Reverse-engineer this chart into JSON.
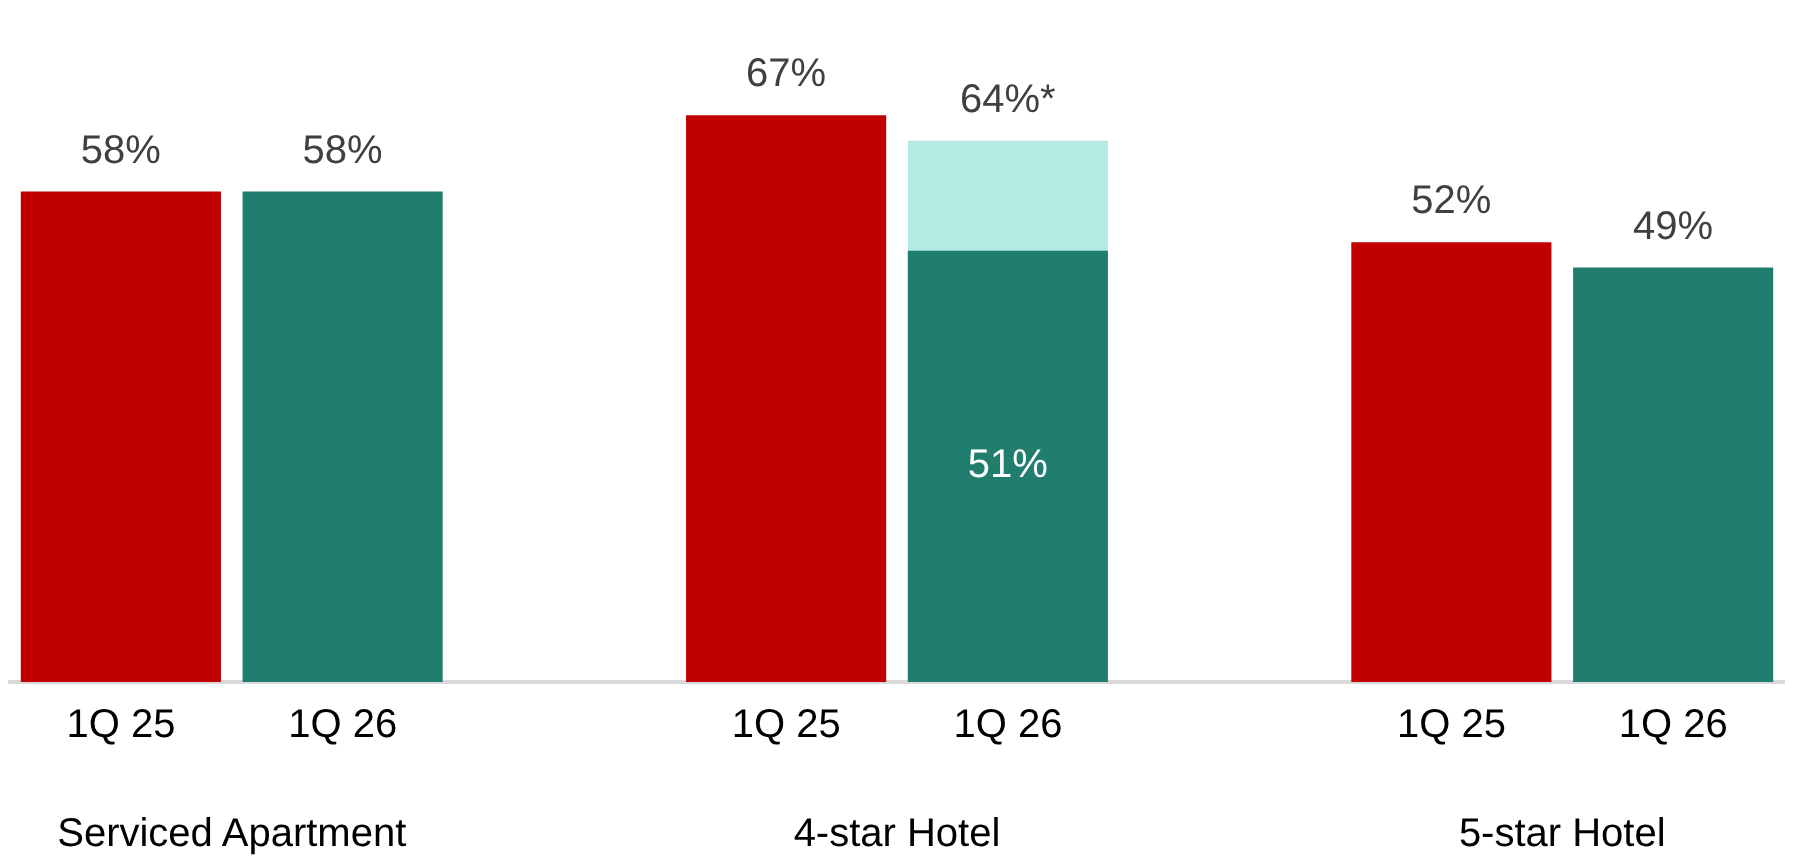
{
  "chart_data": {
    "type": "bar",
    "categories": [
      "1Q 25",
      "1Q 26",
      null,
      "1Q 25",
      "1Q 26",
      null,
      "1Q 25",
      "1Q 26"
    ],
    "series": [
      {
        "colors": [
          "#c00000",
          "#217e6e",
          null,
          "#c00000",
          "#217e6e",
          null,
          "#c00000",
          "#217e6e"
        ],
        "values": [
          58,
          58,
          null,
          67,
          51,
          null,
          52,
          49
        ],
        "value_labels": [
          "58%",
          "58%",
          null,
          "67%",
          "51%",
          null,
          "52%",
          "49%"
        ]
      },
      {
        "color": "#b3eae2",
        "values": [
          null,
          null,
          null,
          null,
          64,
          null,
          null,
          null
        ],
        "value_labels": [
          null,
          null,
          null,
          null,
          "64%*",
          null,
          null,
          null
        ]
      }
    ],
    "tick_labels": "x",
    "grid": false,
    "legend": false,
    "annotations": [
      "Serviced Apartment",
      "4-star Hotel",
      "5-star Hotel"
    ]
  }
}
